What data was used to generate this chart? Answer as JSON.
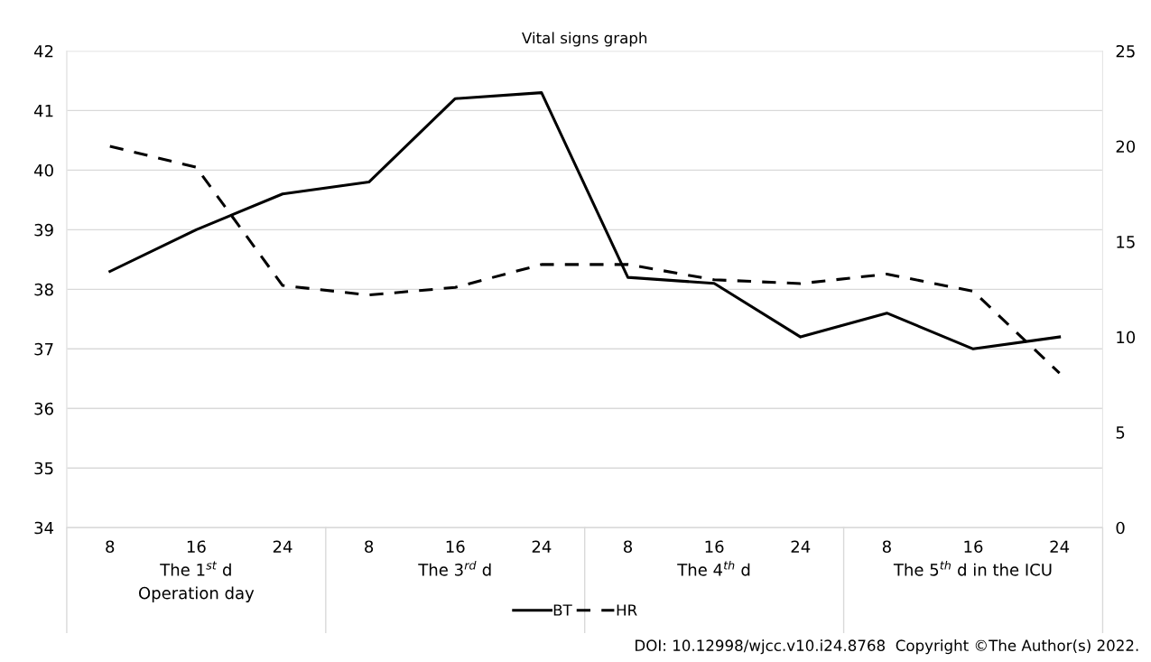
{
  "chart_data": {
    "type": "line",
    "title": "Vital signs graph",
    "categories": [
      "8",
      "16",
      "24",
      "8",
      "16",
      "24",
      "8",
      "16",
      "24",
      "8",
      "16",
      "24"
    ],
    "series": [
      {
        "name": "BT",
        "color": "#000000",
        "line_style": "solid",
        "values": [
          38.3,
          39.0,
          39.6,
          39.8,
          41.2,
          41.3,
          38.2,
          38.1,
          37.2,
          37.6,
          37.0,
          37.2
        ]
      },
      {
        "name": "HR",
        "color": "#000000",
        "line_style": "dashed",
        "axis": "y2",
        "values": [
          20.0,
          18.9,
          12.7,
          12.2,
          12.6,
          13.8,
          13.8,
          13.0,
          12.8,
          13.3,
          12.4,
          8.1
        ]
      }
    ],
    "ylim": [
      34,
      42
    ],
    "yticks": [
      34,
      35,
      36,
      37,
      38,
      39,
      40,
      41,
      42
    ],
    "y2lim": [
      0,
      25
    ],
    "y2ticks": [
      0,
      5,
      10,
      15,
      20,
      25
    ],
    "grid": "y",
    "legend": "bottom",
    "marker": "none",
    "annotations": [
      "The 1$^{st}$ d\nOperation day",
      "The 3$^{rd}$ d",
      "The 4$^{th}$ d",
      "The 5$^{th}$ d in the ICU",
      "DOI: 10.12998/wjcc.v10.i24.8768  Copyright ©The Author(s) 2022."
    ]
  }
}
